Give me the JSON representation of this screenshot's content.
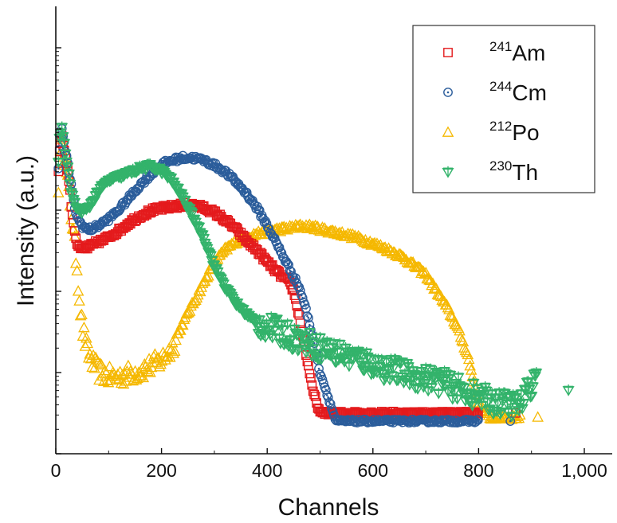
{
  "chart_data": {
    "type": "scatter",
    "xlabel": "Channels",
    "ylabel": "Intensity (a.u.)",
    "xlim": [
      0,
      1000
    ],
    "ylim_decades": [
      0,
      5
    ],
    "y_scale": "log",
    "x_ticks": [
      0,
      200,
      400,
      600,
      800,
      1000
    ],
    "x_tick_labels": [
      "0",
      "200",
      "400",
      "600",
      "800",
      "1,000"
    ],
    "legend_position": "top-right",
    "series": [
      {
        "name": "241Am",
        "mass": "241",
        "element": "Am",
        "marker": "square",
        "color": "#e41a1c",
        "points": [
          [
            5,
            3.48
          ],
          [
            8,
            3.8
          ],
          [
            12,
            3.9
          ],
          [
            15,
            3.75
          ],
          [
            20,
            3.6
          ],
          [
            25,
            3.35
          ],
          [
            30,
            3.0
          ],
          [
            35,
            2.78
          ],
          [
            40,
            2.58
          ],
          [
            45,
            2.52
          ],
          [
            50,
            2.5
          ],
          [
            60,
            2.53
          ],
          [
            70,
            2.56
          ],
          [
            80,
            2.6
          ],
          [
            90,
            2.62
          ],
          [
            100,
            2.66
          ],
          [
            120,
            2.74
          ],
          [
            140,
            2.84
          ],
          [
            160,
            2.92
          ],
          [
            180,
            2.98
          ],
          [
            200,
            3.01
          ],
          [
            220,
            3.03
          ],
          [
            240,
            3.05
          ],
          [
            260,
            3.05
          ],
          [
            280,
            3.02
          ],
          [
            300,
            2.96
          ],
          [
            320,
            2.87
          ],
          [
            340,
            2.76
          ],
          [
            360,
            2.62
          ],
          [
            380,
            2.5
          ],
          [
            400,
            2.35
          ],
          [
            420,
            2.22
          ],
          [
            440,
            2.12
          ],
          [
            450,
            2.0
          ],
          [
            460,
            1.7
          ],
          [
            470,
            1.35
          ],
          [
            480,
            1.0
          ],
          [
            485,
            0.8
          ],
          [
            500,
            0.5
          ],
          [
            800,
            0.5
          ],
          [
            870,
            0.5
          ]
        ]
      },
      {
        "name": "244Cm",
        "mass": "244",
        "element": "Cm",
        "marker": "circle-dot",
        "color": "#2b5d9b",
        "points": [
          [
            5,
            3.5
          ],
          [
            8,
            3.85
          ],
          [
            12,
            3.98
          ],
          [
            15,
            3.85
          ],
          [
            20,
            3.65
          ],
          [
            25,
            3.45
          ],
          [
            30,
            3.25
          ],
          [
            35,
            3.05
          ],
          [
            40,
            2.9
          ],
          [
            50,
            2.8
          ],
          [
            60,
            2.75
          ],
          [
            70,
            2.76
          ],
          [
            80,
            2.8
          ],
          [
            100,
            2.88
          ],
          [
            120,
            3.0
          ],
          [
            140,
            3.15
          ],
          [
            160,
            3.3
          ],
          [
            180,
            3.43
          ],
          [
            200,
            3.55
          ],
          [
            220,
            3.6
          ],
          [
            240,
            3.63
          ],
          [
            260,
            3.63
          ],
          [
            280,
            3.6
          ],
          [
            300,
            3.54
          ],
          [
            320,
            3.46
          ],
          [
            340,
            3.34
          ],
          [
            360,
            3.2
          ],
          [
            380,
            3.02
          ],
          [
            400,
            2.8
          ],
          [
            420,
            2.55
          ],
          [
            440,
            2.3
          ],
          [
            460,
            2.05
          ],
          [
            470,
            1.85
          ],
          [
            480,
            1.6
          ],
          [
            490,
            1.3
          ],
          [
            500,
            1.0
          ],
          [
            510,
            0.8
          ],
          [
            520,
            0.6
          ],
          [
            530,
            0.4
          ],
          [
            800,
            0.4
          ],
          [
            860,
            0.4
          ]
        ]
      },
      {
        "name": "212Po",
        "mass": "212",
        "element": "Po",
        "marker": "triangle",
        "color": "#f5b800",
        "points": [
          [
            5,
            3.3
          ],
          [
            8,
            3.7
          ],
          [
            12,
            3.85
          ],
          [
            15,
            3.7
          ],
          [
            20,
            3.45
          ],
          [
            25,
            3.2
          ],
          [
            30,
            2.9
          ],
          [
            35,
            2.6
          ],
          [
            40,
            2.3
          ],
          [
            45,
            1.9
          ],
          [
            50,
            1.55
          ],
          [
            60,
            1.25
          ],
          [
            70,
            1.12
          ],
          [
            80,
            1.02
          ],
          [
            100,
            0.95
          ],
          [
            120,
            0.95
          ],
          [
            140,
            0.98
          ],
          [
            160,
            1.02
          ],
          [
            180,
            1.08
          ],
          [
            200,
            1.15
          ],
          [
            220,
            1.3
          ],
          [
            240,
            1.6
          ],
          [
            260,
            1.85
          ],
          [
            280,
            2.1
          ],
          [
            300,
            2.35
          ],
          [
            320,
            2.5
          ],
          [
            340,
            2.6
          ],
          [
            360,
            2.65
          ],
          [
            380,
            2.7
          ],
          [
            400,
            2.73
          ],
          [
            420,
            2.75
          ],
          [
            440,
            2.77
          ],
          [
            460,
            2.79
          ],
          [
            480,
            2.79
          ],
          [
            500,
            2.76
          ],
          [
            520,
            2.73
          ],
          [
            540,
            2.7
          ],
          [
            560,
            2.67
          ],
          [
            580,
            2.63
          ],
          [
            600,
            2.58
          ],
          [
            620,
            2.53
          ],
          [
            640,
            2.47
          ],
          [
            660,
            2.4
          ],
          [
            680,
            2.3
          ],
          [
            700,
            2.2
          ],
          [
            720,
            2.0
          ],
          [
            740,
            1.8
          ],
          [
            760,
            1.55
          ],
          [
            780,
            1.2
          ],
          [
            790,
            0.9
          ],
          [
            800,
            0.6
          ],
          [
            820,
            0.45
          ],
          [
            850,
            0.45
          ],
          [
            880,
            0.45
          ],
          [
            912,
            0.45
          ]
        ]
      },
      {
        "name": "230Th",
        "mass": "230",
        "element": "Th",
        "marker": "triangle-down",
        "color": "#33b36b",
        "points": [
          [
            5,
            3.6
          ],
          [
            8,
            3.95
          ],
          [
            12,
            3.99
          ],
          [
            15,
            3.85
          ],
          [
            20,
            3.6
          ],
          [
            25,
            3.4
          ],
          [
            30,
            3.2
          ],
          [
            35,
            3.08
          ],
          [
            40,
            3.0
          ],
          [
            50,
            2.98
          ],
          [
            60,
            3.0
          ],
          [
            70,
            3.1
          ],
          [
            80,
            3.22
          ],
          [
            100,
            3.35
          ],
          [
            120,
            3.4
          ],
          [
            140,
            3.45
          ],
          [
            160,
            3.5
          ],
          [
            180,
            3.53
          ],
          [
            200,
            3.47
          ],
          [
            220,
            3.35
          ],
          [
            240,
            3.15
          ],
          [
            260,
            2.9
          ],
          [
            280,
            2.65
          ],
          [
            300,
            2.3
          ],
          [
            320,
            2.05
          ],
          [
            340,
            1.85
          ],
          [
            360,
            1.72
          ],
          [
            380,
            1.6
          ],
          [
            400,
            1.55
          ],
          [
            420,
            1.5
          ],
          [
            440,
            1.45
          ],
          [
            460,
            1.4
          ],
          [
            480,
            1.35
          ],
          [
            500,
            1.3
          ],
          [
            520,
            1.25
          ],
          [
            540,
            1.22
          ],
          [
            560,
            1.18
          ],
          [
            580,
            1.14
          ],
          [
            600,
            1.1
          ],
          [
            620,
            1.05
          ],
          [
            640,
            1.02
          ],
          [
            660,
            0.98
          ],
          [
            680,
            0.95
          ],
          [
            700,
            0.92
          ],
          [
            720,
            0.9
          ],
          [
            740,
            0.85
          ],
          [
            760,
            0.8
          ],
          [
            780,
            0.75
          ],
          [
            800,
            0.7
          ],
          [
            820,
            0.65
          ],
          [
            840,
            0.62
          ],
          [
            860,
            0.6
          ],
          [
            880,
            0.6
          ],
          [
            910,
            0.98
          ],
          [
            970,
            0.78
          ]
        ]
      }
    ]
  }
}
